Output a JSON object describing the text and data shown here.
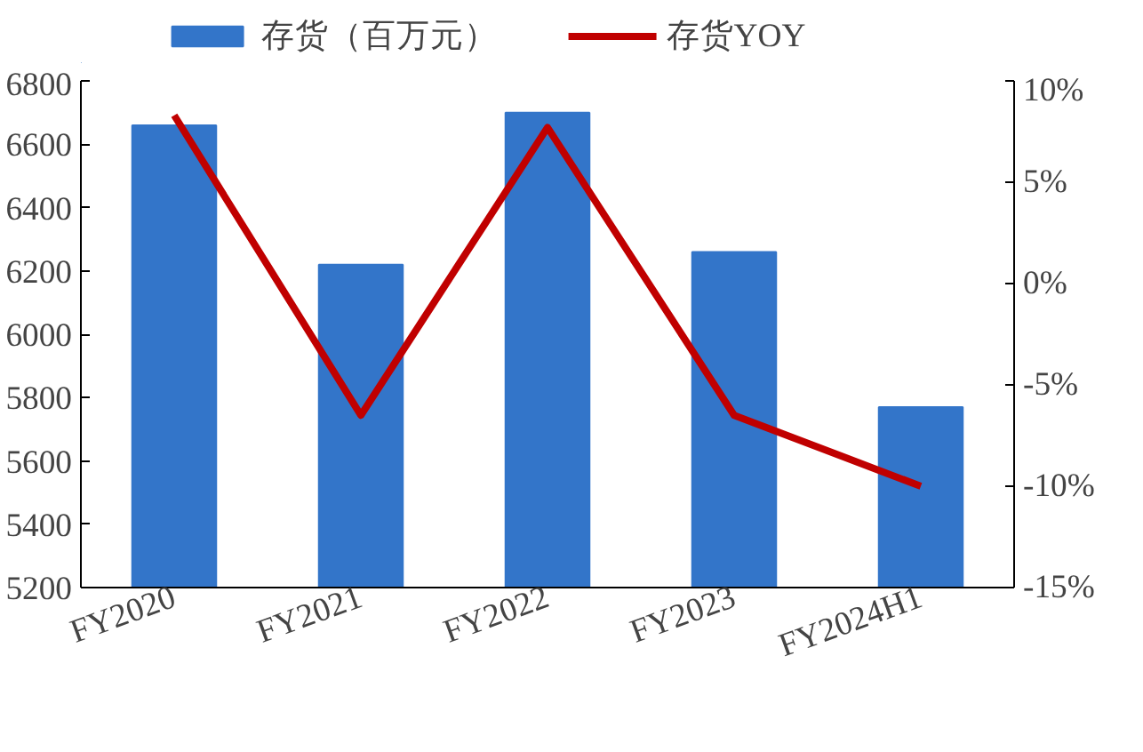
{
  "chart_data": {
    "type": "bar",
    "categories": [
      "FY2020",
      "FY2021",
      "FY2022",
      "FY2023",
      "FY2024H1"
    ],
    "series": [
      {
        "name": "存货（百万元）",
        "color": "#3375c9",
        "values": [
          6660,
          6220,
          6700,
          6260,
          5770
        ]
      },
      {
        "name": "存货YOY",
        "type": "line",
        "axis": "y2",
        "color": "#c00000",
        "values": [
          8.3,
          -6.5,
          7.7,
          -6.5,
          -10.0
        ]
      }
    ],
    "ylim": [
      5200,
      6800
    ],
    "yticks": [
      5200,
      5400,
      5600,
      5800,
      6000,
      6200,
      6400,
      6600,
      6800
    ],
    "y2lim": [
      -15,
      10
    ],
    "y2ticks": [
      {
        "value": -15,
        "label": "-15%"
      },
      {
        "value": -10,
        "label": "-10%"
      },
      {
        "value": -5,
        "label": "-5%"
      },
      {
        "value": 0,
        "label": "0%"
      },
      {
        "value": 5,
        "label": "5%"
      },
      {
        "value": 10,
        "label": "10%"
      }
    ],
    "legend": "top",
    "grid": false
  }
}
